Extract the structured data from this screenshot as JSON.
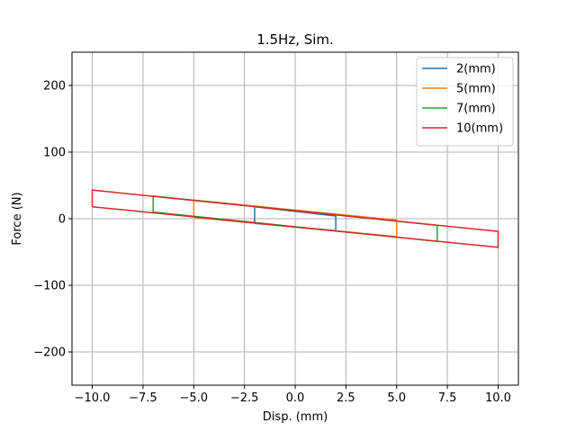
{
  "chart_data": {
    "type": "line",
    "title": "1.5Hz, Sim.",
    "xlabel": "Disp. (mm)",
    "ylabel": "Force (N)",
    "xlim": [
      -11.0,
      11.0
    ],
    "ylim": [
      -250,
      250
    ],
    "xticks": [
      -10.0,
      -7.5,
      -5.0,
      -2.5,
      0.0,
      2.5,
      5.0,
      7.5,
      10.0
    ],
    "xtick_labels": [
      "−10.0",
      "−7.5",
      "−5.0",
      "−2.5",
      "0.0",
      "2.5",
      "5.0",
      "7.5",
      "10.0"
    ],
    "yticks": [
      -200,
      -100,
      0,
      100,
      200
    ],
    "ytick_labels": [
      "−200",
      "−100",
      "0",
      "100",
      "200"
    ],
    "grid": true,
    "legend_position": "top-right",
    "series": [
      {
        "name": "2(mm)",
        "color": "#1f77b4",
        "points": [
          [
            -2,
            -7
          ],
          [
            -2,
            18
          ],
          [
            2,
            4
          ],
          [
            2,
            -18
          ],
          [
            -2,
            -7
          ]
        ]
      },
      {
        "name": "5(mm)",
        "color": "#ff7f0e",
        "points": [
          [
            -5,
            2
          ],
          [
            -5,
            28
          ],
          [
            5,
            -2
          ],
          [
            5,
            -27
          ],
          [
            -5,
            2
          ]
        ]
      },
      {
        "name": "7(mm)",
        "color": "#2ca02c",
        "points": [
          [
            -7,
            10
          ],
          [
            -7,
            34
          ],
          [
            7,
            -10
          ],
          [
            7,
            -34
          ],
          [
            -7,
            10
          ]
        ]
      },
      {
        "name": "10(mm)",
        "color": "#d62728",
        "points": [
          [
            -10,
            18
          ],
          [
            -10,
            43
          ],
          [
            10,
            -19
          ],
          [
            10,
            -43
          ],
          [
            -10,
            18
          ]
        ]
      }
    ]
  }
}
